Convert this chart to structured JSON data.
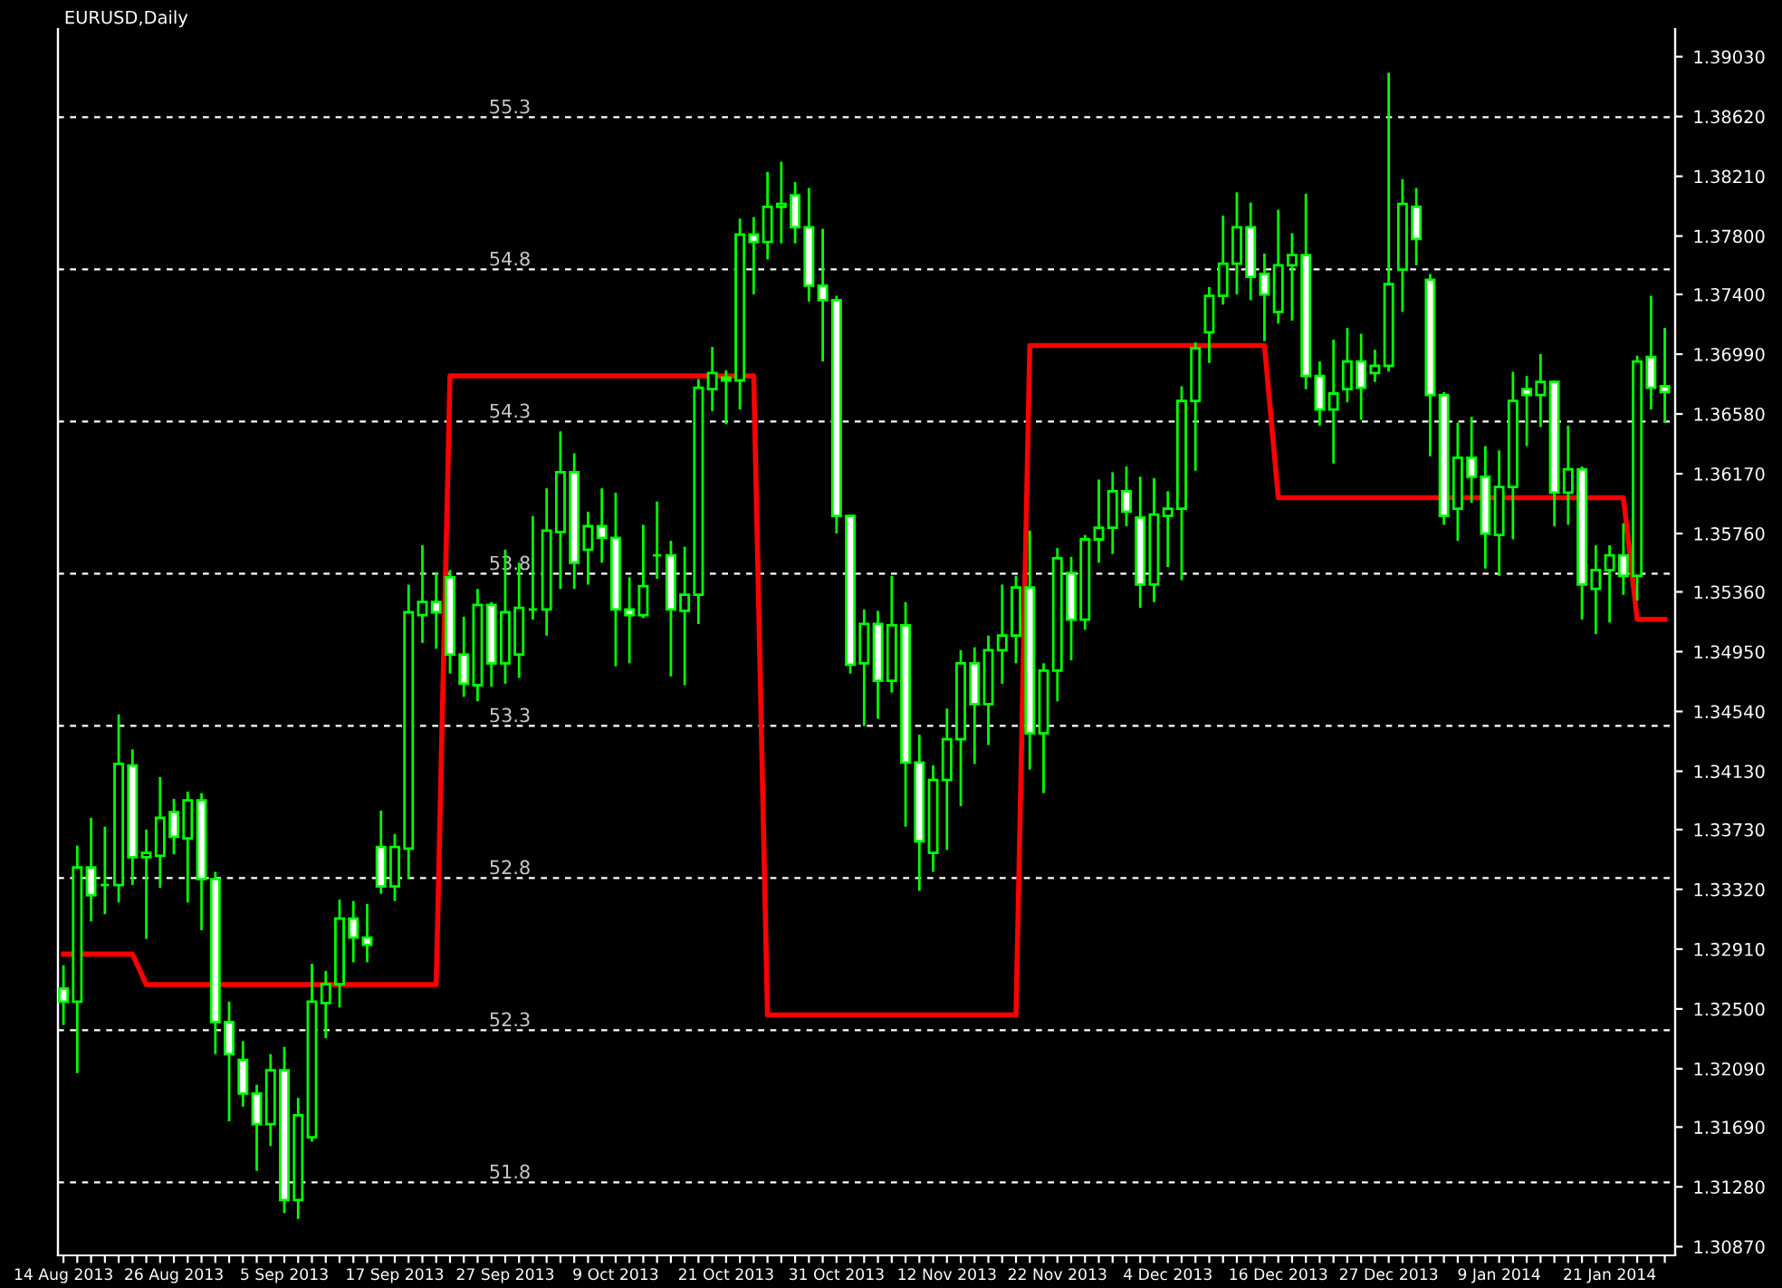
{
  "chart_data": {
    "type": "candlestick",
    "title": "EURUSD,Daily",
    "categories": [
      "14 Aug 2013",
      null,
      null,
      null,
      null,
      null,
      null,
      null,
      "26 Aug 2013",
      null,
      null,
      null,
      null,
      null,
      null,
      null,
      "5 Sep 2013",
      null,
      null,
      null,
      null,
      null,
      null,
      null,
      "17 Sep 2013",
      null,
      null,
      null,
      null,
      null,
      null,
      null,
      "27 Sep 2013",
      null,
      null,
      null,
      null,
      null,
      null,
      null,
      "9 Oct 2013",
      null,
      null,
      null,
      null,
      null,
      null,
      null,
      "21 Oct 2013",
      null,
      null,
      null,
      null,
      null,
      null,
      null,
      "31 Oct 2013",
      null,
      null,
      null,
      null,
      null,
      null,
      null,
      "12 Nov 2013",
      null,
      null,
      null,
      null,
      null,
      null,
      null,
      "22 Nov 2013",
      null,
      null,
      null,
      null,
      null,
      null,
      null,
      "4 Dec 2013",
      null,
      null,
      null,
      null,
      null,
      null,
      null,
      "16 Dec 2013",
      null,
      null,
      null,
      null,
      null,
      null,
      null,
      "27 Dec 2013",
      null,
      null,
      null,
      null,
      null,
      null,
      null,
      "9 Jan 2014",
      null,
      null,
      null,
      null,
      null,
      null,
      null,
      "21 Jan 2014",
      null,
      null,
      null,
      null
    ],
    "series": [
      {
        "color": "#00ff00",
        "ohlc": [
          [
            1.3264,
            1.328,
            1.3239,
            1.3255
          ],
          [
            1.3255,
            1.3362,
            1.3206,
            1.3347
          ],
          [
            1.3347,
            1.3381,
            1.331,
            1.3328
          ],
          [
            1.3335,
            1.3375,
            1.3315,
            1.3335
          ],
          [
            1.3335,
            1.3452,
            1.3323,
            1.3418
          ],
          [
            1.3417,
            1.3428,
            1.3335,
            1.3354
          ],
          [
            1.3354,
            1.3373,
            1.3298,
            1.3357
          ],
          [
            1.3355,
            1.3409,
            1.3333,
            1.3381
          ],
          [
            1.3385,
            1.3394,
            1.3356,
            1.3368
          ],
          [
            1.3367,
            1.3399,
            1.3323,
            1.3393
          ],
          [
            1.3393,
            1.3398,
            1.3304,
            1.3339
          ],
          [
            1.3339,
            1.3344,
            1.3219,
            1.3241
          ],
          [
            1.3241,
            1.3255,
            1.3173,
            1.3219
          ],
          [
            1.3215,
            1.3228,
            1.3183,
            1.3192
          ],
          [
            1.3192,
            1.3198,
            1.3139,
            1.3171
          ],
          [
            1.3171,
            1.3219,
            1.3156,
            1.3208
          ],
          [
            1.3208,
            1.3224,
            1.311,
            1.3119
          ],
          [
            1.3119,
            1.3189,
            1.3106,
            1.3177
          ],
          [
            1.3162,
            1.3281,
            1.3159,
            1.3255
          ],
          [
            1.3254,
            1.3276,
            1.323,
            1.3267
          ],
          [
            1.3267,
            1.3325,
            1.3251,
            1.3312
          ],
          [
            1.3312,
            1.3324,
            1.3282,
            1.3299
          ],
          [
            1.3299,
            1.3322,
            1.3282,
            1.3294
          ],
          [
            1.3361,
            1.3386,
            1.3329,
            1.3334
          ],
          [
            1.3334,
            1.337,
            1.3324,
            1.3361
          ],
          [
            1.336,
            1.3541,
            1.3339,
            1.3522
          ],
          [
            1.352,
            1.3568,
            1.3501,
            1.3529
          ],
          [
            1.3529,
            1.3549,
            1.3497,
            1.3522
          ],
          [
            1.3546,
            1.3551,
            1.348,
            1.3493
          ],
          [
            1.3493,
            1.3519,
            1.3464,
            1.3473
          ],
          [
            1.3472,
            1.3538,
            1.3461,
            1.3527
          ],
          [
            1.3527,
            1.3529,
            1.3471,
            1.3487
          ],
          [
            1.3487,
            1.3565,
            1.3473,
            1.3522
          ],
          [
            1.3493,
            1.3556,
            1.3477,
            1.3525
          ],
          [
            1.3524,
            1.3588,
            1.3517,
            1.3524
          ],
          [
            1.3524,
            1.3607,
            1.3506,
            1.3578
          ],
          [
            1.3577,
            1.3646,
            1.3538,
            1.3618
          ],
          [
            1.3618,
            1.3631,
            1.3538,
            1.3556
          ],
          [
            1.3565,
            1.3591,
            1.3541,
            1.3581
          ],
          [
            1.3581,
            1.3607,
            1.3556,
            1.3573
          ],
          [
            1.3573,
            1.3604,
            1.3485,
            1.3524
          ],
          [
            1.3524,
            1.3546,
            1.3487,
            1.352
          ],
          [
            1.352,
            1.3582,
            1.3518,
            1.354
          ],
          [
            1.3561,
            1.3598,
            1.3545,
            1.3561
          ],
          [
            1.3561,
            1.3571,
            1.3478,
            1.3524
          ],
          [
            1.3523,
            1.3567,
            1.3472,
            1.3534
          ],
          [
            1.3534,
            1.3682,
            1.3514,
            1.3676
          ],
          [
            1.3675,
            1.3704,
            1.366,
            1.3686
          ],
          [
            1.3683,
            1.3688,
            1.3651,
            1.3681
          ],
          [
            1.3681,
            1.3792,
            1.3661,
            1.3781
          ],
          [
            1.3781,
            1.3793,
            1.374,
            1.3776
          ],
          [
            1.3776,
            1.3824,
            1.3764,
            1.38
          ],
          [
            1.38,
            1.3831,
            1.3775,
            1.3802
          ],
          [
            1.3808,
            1.3817,
            1.3775,
            1.3786
          ],
          [
            1.3786,
            1.3813,
            1.3735,
            1.3746
          ],
          [
            1.3746,
            1.3785,
            1.3694,
            1.3736
          ],
          [
            1.3736,
            1.3739,
            1.3576,
            1.3588
          ],
          [
            1.3588,
            1.3589,
            1.348,
            1.3486
          ],
          [
            1.3487,
            1.3524,
            1.3444,
            1.3514
          ],
          [
            1.3514,
            1.3523,
            1.3449,
            1.3475
          ],
          [
            1.3475,
            1.3547,
            1.3467,
            1.3513
          ],
          [
            1.3513,
            1.3529,
            1.3375,
            1.3419
          ],
          [
            1.3419,
            1.3438,
            1.3331,
            1.3365
          ],
          [
            1.3357,
            1.3417,
            1.3344,
            1.3407
          ],
          [
            1.3407,
            1.3456,
            1.3359,
            1.3435
          ],
          [
            1.3435,
            1.3496,
            1.3389,
            1.3487
          ],
          [
            1.3487,
            1.3498,
            1.3418,
            1.3459
          ],
          [
            1.3459,
            1.3506,
            1.3431,
            1.3496
          ],
          [
            1.3496,
            1.3541,
            1.3473,
            1.3506
          ],
          [
            1.3506,
            1.3547,
            1.3487,
            1.3539
          ],
          [
            1.3539,
            1.3578,
            1.3414,
            1.3439
          ],
          [
            1.3439,
            1.3487,
            1.3398,
            1.3482
          ],
          [
            1.3482,
            1.3566,
            1.3461,
            1.3559
          ],
          [
            1.3549,
            1.356,
            1.3489,
            1.3517
          ],
          [
            1.3517,
            1.3575,
            1.351,
            1.3572
          ],
          [
            1.3572,
            1.3613,
            1.3556,
            1.358
          ],
          [
            1.358,
            1.3618,
            1.3562,
            1.3605
          ],
          [
            1.3605,
            1.3622,
            1.3581,
            1.3591
          ],
          [
            1.3587,
            1.3615,
            1.3525,
            1.3541
          ],
          [
            1.3541,
            1.3614,
            1.3529,
            1.3589
          ],
          [
            1.3588,
            1.3605,
            1.3553,
            1.3593
          ],
          [
            1.3593,
            1.3677,
            1.3544,
            1.3667
          ],
          [
            1.3667,
            1.3707,
            1.3619,
            1.3703
          ],
          [
            1.3714,
            1.3745,
            1.3693,
            1.3739
          ],
          [
            1.3739,
            1.3794,
            1.3733,
            1.3761
          ],
          [
            1.3761,
            1.381,
            1.374,
            1.3786
          ],
          [
            1.3786,
            1.3803,
            1.3736,
            1.3752
          ],
          [
            1.3754,
            1.3768,
            1.3708,
            1.374
          ],
          [
            1.3728,
            1.3798,
            1.372,
            1.376
          ],
          [
            1.376,
            1.3782,
            1.3722,
            1.3767
          ],
          [
            1.3767,
            1.3809,
            1.3675,
            1.3684
          ],
          [
            1.3684,
            1.3694,
            1.365,
            1.3661
          ],
          [
            1.3661,
            1.3709,
            1.3624,
            1.3672
          ],
          [
            1.3675,
            1.3717,
            1.3666,
            1.3694
          ],
          [
            1.3694,
            1.3713,
            1.3654,
            1.3676
          ],
          [
            1.3686,
            1.3702,
            1.368,
            1.3691
          ],
          [
            1.3691,
            1.3892,
            1.3687,
            1.3747
          ],
          [
            1.3757,
            1.3819,
            1.3728,
            1.3802
          ],
          [
            1.38,
            1.3813,
            1.376,
            1.3778
          ],
          [
            1.375,
            1.3754,
            1.3629,
            1.3671
          ],
          [
            1.3671,
            1.3673,
            1.3582,
            1.3588
          ],
          [
            1.3593,
            1.3652,
            1.3571,
            1.3628
          ],
          [
            1.3628,
            1.3656,
            1.3597,
            1.3615
          ],
          [
            1.3615,
            1.3636,
            1.3552,
            1.3576
          ],
          [
            1.3575,
            1.3633,
            1.3547,
            1.3608
          ],
          [
            1.3608,
            1.3687,
            1.3572,
            1.3667
          ],
          [
            1.3675,
            1.3684,
            1.3636,
            1.3671
          ],
          [
            1.3671,
            1.3699,
            1.3649,
            1.368
          ],
          [
            1.368,
            1.3681,
            1.3581,
            1.3604
          ],
          [
            1.3604,
            1.365,
            1.3582,
            1.362
          ],
          [
            1.362,
            1.3622,
            1.3517,
            1.3541
          ],
          [
            1.3538,
            1.3568,
            1.3507,
            1.3551
          ],
          [
            1.3551,
            1.3568,
            1.3515,
            1.3561
          ],
          [
            1.3561,
            1.3583,
            1.3534,
            1.3547
          ],
          [
            1.3547,
            1.3698,
            1.353,
            1.3694
          ],
          [
            1.3697,
            1.3739,
            1.3661,
            1.3676
          ],
          [
            1.3677,
            1.3717,
            1.3652,
            1.3673
          ]
        ]
      },
      {
        "type": "line",
        "axis": "y2",
        "color": "#ff0000",
        "values": [
          52.55,
          52.55,
          52.55,
          52.55,
          52.55,
          52.55,
          52.45,
          52.45,
          52.45,
          52.45,
          52.45,
          52.45,
          52.45,
          52.45,
          52.45,
          52.45,
          52.45,
          52.45,
          52.45,
          52.45,
          52.45,
          52.45,
          52.45,
          52.45,
          52.45,
          52.45,
          52.45,
          52.45,
          54.45,
          54.45,
          54.45,
          54.45,
          54.45,
          54.45,
          54.45,
          54.45,
          54.45,
          54.45,
          54.45,
          54.45,
          54.45,
          54.45,
          54.45,
          54.45,
          54.45,
          54.45,
          54.45,
          54.45,
          54.45,
          54.45,
          54.45,
          52.35,
          52.35,
          52.35,
          52.35,
          52.35,
          52.35,
          52.35,
          52.35,
          52.35,
          52.35,
          52.35,
          52.35,
          52.35,
          52.35,
          52.35,
          52.35,
          52.35,
          52.35,
          52.35,
          54.55,
          54.55,
          54.55,
          54.55,
          54.55,
          54.55,
          54.55,
          54.55,
          54.55,
          54.55,
          54.55,
          54.55,
          54.55,
          54.55,
          54.55,
          54.55,
          54.55,
          54.55,
          54.05,
          54.05,
          54.05,
          54.05,
          54.05,
          54.05,
          54.05,
          54.05,
          54.05,
          54.05,
          54.05,
          54.05,
          54.05,
          54.05,
          54.05,
          54.05,
          54.05,
          54.05,
          54.05,
          54.05,
          54.05,
          54.05,
          54.05,
          54.05,
          54.05,
          54.05,
          53.65,
          53.65,
          53.65
        ]
      }
    ],
    "ylim": [
      1.3081,
      1.3922
    ],
    "yticks": [
      {
        "value": 1.3087,
        "label": "1.30870"
      },
      {
        "value": 1.3128,
        "label": "1.31280"
      },
      {
        "value": 1.3169,
        "label": "1.31690"
      },
      {
        "value": 1.3209,
        "label": "1.32090"
      },
      {
        "value": 1.325,
        "label": "1.32500"
      },
      {
        "value": 1.3291,
        "label": "1.32910"
      },
      {
        "value": 1.3332,
        "label": "1.33320"
      },
      {
        "value": 1.3373,
        "label": "1.33730"
      },
      {
        "value": 1.3413,
        "label": "1.34130"
      },
      {
        "value": 1.3454,
        "label": "1.34540"
      },
      {
        "value": 1.3495,
        "label": "1.34950"
      },
      {
        "value": 1.3536,
        "label": "1.35360"
      },
      {
        "value": 1.3576,
        "label": "1.35760"
      },
      {
        "value": 1.3617,
        "label": "1.36170"
      },
      {
        "value": 1.3658,
        "label": "1.36580"
      },
      {
        "value": 1.3699,
        "label": "1.36990"
      },
      {
        "value": 1.374,
        "label": "1.37400"
      },
      {
        "value": 1.378,
        "label": "1.37800"
      },
      {
        "value": 1.3821,
        "label": "1.38210"
      },
      {
        "value": 1.3862,
        "label": "1.38620"
      },
      {
        "value": 1.3903,
        "label": "1.39030"
      }
    ],
    "y2lim": [
      51.56,
      55.59
    ],
    "y2ticks": [
      51.8,
      52.3,
      52.8,
      53.3,
      53.8,
      54.3,
      54.8,
      55.3
    ],
    "grid": true
  }
}
